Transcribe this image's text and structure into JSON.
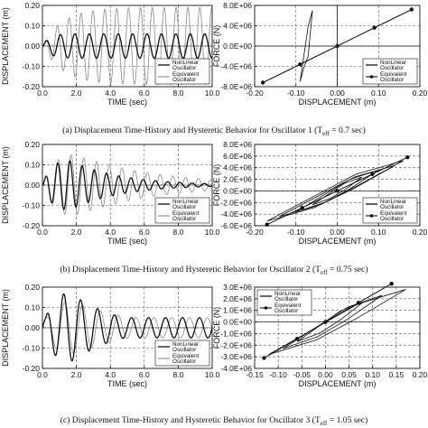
{
  "captions": [
    {
      "prefix": "(a) Displacement Time-History and Hysteretic Behavior for Oscillator 1 (T",
      "sub": "eff",
      "suffix": " = 0.7 sec)"
    },
    {
      "prefix": "(b) Displacement Time-History and Hysteretic Behavior for Oscillator 2 (T",
      "sub": "eff",
      "suffix": " = 0.75 sec)"
    },
    {
      "prefix": "(c) Displacement Time-History and Hysteretic Behavior for Oscillator 3 (T",
      "sub": "eff",
      "suffix": " = 1.05 sec)"
    }
  ],
  "legend_labels": {
    "nonlinear": [
      "NonLinear",
      "Oscillator"
    ],
    "equivalent": [
      "Equivalent",
      "Oscillator"
    ]
  },
  "colors": {
    "nonlinear": "#111111",
    "equivalent": "#888888",
    "grid": "#555555"
  },
  "chart_data": [
    {
      "type": "line",
      "kind": "time-history",
      "row": 0,
      "xlabel": "TIME (sec)",
      "ylabel": "DISPLACEMENT (m)",
      "xlim": [
        0,
        10
      ],
      "ylim": [
        -0.2,
        0.2
      ],
      "xticks": [
        "0.0",
        "2.0",
        "4.0",
        "6.0",
        "8.0",
        "10.0"
      ],
      "yticks": [
        "-0.20",
        "-0.10",
        "0.00",
        "0.10",
        "0.20"
      ],
      "grid": true,
      "legend": "bottom-right",
      "series": [
        {
          "name": "NonLinear Oscillator",
          "role": "nonlinear",
          "period": 0.85,
          "amp_peak": 0.06,
          "grow": 0.4,
          "decay": 0
        },
        {
          "name": "Equivalent Oscillator",
          "role": "equivalent",
          "period": 0.7,
          "amp_peak": 0.19,
          "grow": 1.2,
          "decay": 0
        }
      ]
    },
    {
      "type": "line",
      "kind": "hysteresis",
      "row": 0,
      "xlabel": "DISPLACEMENT (m)",
      "ylabel": "FORCE (N)",
      "xlim": [
        -0.2,
        0.2
      ],
      "ylim": [
        -8000000,
        8000000
      ],
      "xticks": [
        "-0.20",
        "-0.10",
        "0.00",
        "0.10",
        "0.20"
      ],
      "yticks": [
        "-8.0E+06",
        "-4.0E+06",
        "0.0E+00",
        "4.0E+06",
        "8.0E+06"
      ],
      "yaxis_at_zero": true,
      "grid": true,
      "legend": "bottom-right",
      "series": [
        {
          "name": "NonLinear Oscillator",
          "role": "nonlinear",
          "loops": [
            [
              -0.09,
              -0.06,
              5200000,
              7000000
            ]
          ]
        },
        {
          "name": "Equivalent Oscillator",
          "role": "equivalent",
          "points": [
            [
              -0.18,
              -7200000
            ],
            [
              -0.09,
              -3600000
            ],
            [
              0.0,
              0.0
            ],
            [
              0.09,
              3600000
            ],
            [
              0.18,
              7200000
            ]
          ]
        }
      ]
    },
    {
      "type": "line",
      "kind": "time-history",
      "row": 1,
      "xlabel": "TIME (sec)",
      "ylabel": "DISPLACEMENT (m)",
      "xlim": [
        0,
        10
      ],
      "ylim": [
        -0.2,
        0.2
      ],
      "xticks": [
        "0.0",
        "2.0",
        "4.0",
        "6.0",
        "8.0",
        "10.0"
      ],
      "yticks": [
        "-0.20",
        "-0.10",
        "0.00",
        "0.10",
        "0.20"
      ],
      "grid": true,
      "legend": "bottom-right",
      "series": [
        {
          "name": "NonLinear Oscillator",
          "role": "nonlinear",
          "period": 0.72,
          "amp_peak": 0.13,
          "grow": 0.5,
          "decay": 0.35
        },
        {
          "name": "Equivalent Oscillator",
          "role": "equivalent",
          "period": 0.75,
          "amp_peak": 0.17,
          "grow": 0.7,
          "decay": 0.22
        }
      ]
    },
    {
      "type": "line",
      "kind": "hysteresis",
      "row": 1,
      "xlabel": "DISPLACEMENT (m)",
      "ylabel": "FORCE (N)",
      "xlim": [
        -0.2,
        0.2
      ],
      "ylim": [
        -6000000,
        8000000
      ],
      "xticks": [
        "-0.20",
        "-0.10",
        "0.00",
        "0.10",
        "0.20"
      ],
      "yticks": [
        "-6.0E+06",
        "-4.0E+06",
        "-2.0E+06",
        "0.0E+00",
        "2.0E+06",
        "4.0E+06",
        "6.0E+06",
        "8.0E+06"
      ],
      "yaxis_at_zero": false,
      "grid": true,
      "legend": "bottom-right",
      "series": [
        {
          "name": "NonLinear Oscillator",
          "role": "nonlinear",
          "loops": [
            [
              -0.17,
              0.16,
              1600000,
              5200000
            ],
            [
              -0.14,
              0.14,
              1500000,
              4400000
            ],
            [
              -0.1,
              0.1,
              1300000,
              3600000
            ],
            [
              -0.06,
              0.06,
              900000,
              2400000
            ]
          ]
        },
        {
          "name": "Equivalent Oscillator",
          "role": "equivalent",
          "points": [
            [
              -0.17,
              -5800000
            ],
            [
              -0.085,
              -2900000
            ],
            [
              0.0,
              0.0
            ],
            [
              0.085,
              2900000
            ],
            [
              0.17,
              5800000
            ]
          ]
        }
      ]
    },
    {
      "type": "line",
      "kind": "time-history",
      "row": 2,
      "xlabel": "TIME (sec)",
      "ylabel": "DISPLACEMENT (m)",
      "xlim": [
        0,
        10
      ],
      "ylim": [
        -0.2,
        0.2
      ],
      "xticks": [
        "0.0",
        "2.0",
        "4.0",
        "6.0",
        "8.0",
        "10.0"
      ],
      "yticks": [
        "-0.20",
        "-0.10",
        "0.00",
        "0.10",
        "0.20"
      ],
      "grid": true,
      "legend": "bottom-right",
      "series": [
        {
          "name": "NonLinear Oscillator",
          "role": "nonlinear",
          "period": 1.0,
          "amp_peak": 0.19,
          "grow": 0.6,
          "decay": 0.4,
          "floor": 0.05
        },
        {
          "name": "Equivalent Oscillator",
          "role": "equivalent",
          "period": 1.05,
          "amp_peak": 0.15,
          "grow": 0.7,
          "decay": 0.3,
          "floor": 0.05
        }
      ]
    },
    {
      "type": "line",
      "kind": "hysteresis",
      "row": 2,
      "xlabel": "DISPLACEMENT (m)",
      "ylabel": "FORCE (N)",
      "xlim": [
        -0.15,
        0.2
      ],
      "ylim": [
        -4000000,
        3000000
      ],
      "xticks": [
        "-0.15",
        "-0.10",
        "-0.05",
        "0.00",
        "0.05",
        "0.10",
        "0.15",
        "0.20"
      ],
      "yticks": [
        "-4.0E+06",
        "-3.0E+06",
        "-2.0E+06",
        "-1.0E+06",
        "0.0E+00",
        "1.0E+06",
        "2.0E+06",
        "3.0E+06"
      ],
      "yaxis_at_zero": false,
      "grid": true,
      "legend": "top-left",
      "series": [
        {
          "name": "NonLinear Oscillator",
          "role": "nonlinear",
          "loops": [
            [
              -0.12,
              0.17,
              900000,
              2800000
            ],
            [
              -0.09,
              0.12,
              800000,
              2300000
            ],
            [
              -0.06,
              0.08,
              600000,
              1700000
            ]
          ]
        },
        {
          "name": "Equivalent Oscillator",
          "role": "equivalent",
          "points": [
            [
              -0.13,
              -3100000
            ],
            [
              -0.06,
              -1450000
            ],
            [
              0.0,
              0.0
            ],
            [
              0.07,
              1650000
            ],
            [
              0.14,
              3300000
            ]
          ]
        }
      ]
    }
  ]
}
